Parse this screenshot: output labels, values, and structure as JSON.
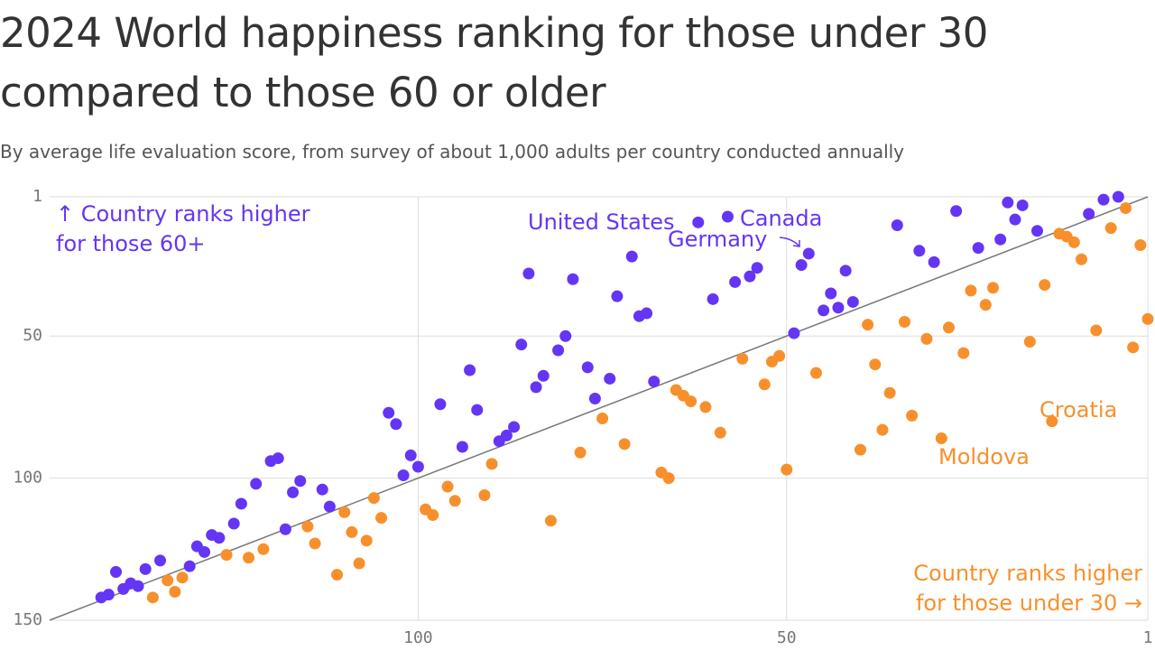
{
  "chart_data": {
    "type": "scatter",
    "title": "2024 World happiness ranking for those under 30 compared to those 60 or older",
    "subtitle": "By average life evaluation score, from survey of about 1,000 adults per country conducted annually",
    "xlim": [
      150,
      1
    ],
    "ylim": [
      150,
      1
    ],
    "xticks": [
      100,
      50,
      1
    ],
    "yticks": [
      1,
      50,
      100,
      150
    ],
    "grid": true,
    "diagonal": true,
    "series": [
      {
        "name": "↑ Country ranks higher for those 60+",
        "color": "#6535f5",
        "x": [
          143,
          142,
          141,
          140,
          139,
          138,
          137,
          135,
          131,
          130,
          129,
          128,
          127,
          125,
          124,
          122,
          120,
          119,
          118,
          117,
          116,
          113,
          112,
          104,
          103,
          102,
          101,
          100,
          97,
          94,
          93,
          92,
          89,
          88,
          87,
          86,
          85,
          84,
          83,
          81,
          80,
          79,
          77,
          76,
          74,
          73,
          71,
          70,
          69,
          68,
          62,
          60,
          58,
          57,
          55,
          54,
          49,
          48,
          47,
          45,
          44,
          43,
          42,
          41,
          35,
          32,
          30,
          27,
          24,
          21,
          20,
          19,
          18,
          16,
          9,
          7,
          5
        ],
        "y": [
          142,
          141,
          133,
          139,
          137,
          138,
          132,
          129,
          131,
          124,
          126,
          120,
          121,
          116,
          109,
          102,
          94,
          93,
          118,
          105,
          101,
          104,
          110,
          77,
          81,
          99,
          92,
          96,
          74,
          89,
          62,
          76,
          87,
          85,
          82,
          53,
          28,
          68,
          64,
          55,
          50,
          30,
          61,
          72,
          65,
          36,
          22,
          43,
          42,
          66,
          10,
          37,
          8,
          31,
          29,
          26,
          49,
          25,
          21,
          41,
          35,
          40,
          27,
          38,
          11,
          20,
          24,
          6,
          19,
          16,
          3,
          9,
          4,
          13,
          7,
          2,
          1
        ]
      },
      {
        "name": "Country ranks higher for those under 30 →",
        "color": "#f7902c",
        "x": [
          136,
          134,
          133,
          132,
          126,
          123,
          121,
          115,
          114,
          111,
          110,
          109,
          108,
          107,
          106,
          105,
          99,
          98,
          96,
          95,
          91,
          90,
          82,
          78,
          75,
          72,
          67,
          66,
          65,
          64,
          63,
          61,
          59,
          56,
          53,
          52,
          51,
          50,
          46,
          40,
          39,
          38,
          37,
          36,
          34,
          33,
          31,
          29,
          28,
          26,
          25,
          23,
          22,
          17,
          15,
          14,
          13,
          12,
          11,
          10,
          8,
          6,
          4,
          3,
          2,
          1
        ],
        "y": [
          142,
          136,
          140,
          135,
          127,
          128,
          125,
          117,
          123,
          134,
          112,
          119,
          130,
          122,
          107,
          114,
          111,
          113,
          103,
          108,
          106,
          95,
          115,
          91,
          79,
          88,
          98,
          100,
          69,
          71,
          73,
          75,
          84,
          58,
          67,
          59,
          57,
          97,
          63,
          90,
          46,
          60,
          83,
          70,
          45,
          78,
          51,
          86,
          47,
          56,
          34,
          39,
          33,
          52,
          32,
          80,
          14,
          15,
          17,
          23,
          48,
          12,
          5,
          54,
          18,
          44
        ]
      }
    ],
    "annotations": [
      "United States",
      "Canada",
      "Germany",
      "Moldova",
      "Croatia"
    ]
  }
}
